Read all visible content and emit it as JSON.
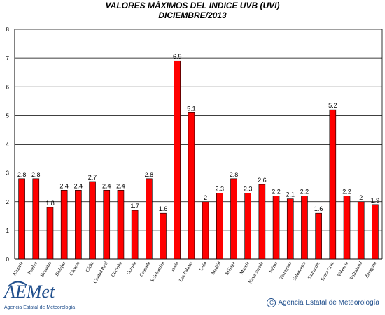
{
  "chart_data": {
    "type": "bar",
    "title": "VALORES MÁXIMOS DEL INDICE UVB (UVI)",
    "subtitle": "DICIEMBRE/2013",
    "categories": [
      "Almería",
      "Huelva",
      "Bruselas",
      "Badajoz",
      "Cáceres",
      "Cádiz",
      "Ciudad Real",
      "Córdoba",
      "Coruña",
      "Granada",
      "S.Sebastián",
      "Izaña",
      "Las Palmas",
      "León",
      "Madrid",
      "Málaga",
      "Murcia",
      "Navacerrada",
      "Palma",
      "Tarragona",
      "Salamanca",
      "Santander",
      "Santa Cruz",
      "Valencia",
      "Valladolid",
      "Zaragoza"
    ],
    "values": [
      2.8,
      2.8,
      1.8,
      2.4,
      2.4,
      2.7,
      2.4,
      2.4,
      1.7,
      2.8,
      1.6,
      6.9,
      5.1,
      2.0,
      2.3,
      2.8,
      2.3,
      2.6,
      2.2,
      2.1,
      2.2,
      1.6,
      5.2,
      2.2,
      2.0,
      1.9
    ],
    "data_labels": [
      "2.8",
      "2.8",
      "1.8",
      "2.4",
      "2.4",
      "2.7",
      "2.4",
      "2.4",
      "1.7",
      "2.8",
      "1.6",
      "6.9",
      "5.1",
      "2",
      "2.3",
      "2.8",
      "2.3",
      "2.6",
      "2.2",
      "2.1",
      "2.2",
      "1.6",
      "5.2",
      "2.2",
      "2",
      "1.9"
    ],
    "ylim": [
      0,
      8
    ],
    "yticks": [
      "0",
      "1",
      "2",
      "3",
      "4",
      "5",
      "6",
      "7",
      "8"
    ],
    "bar_color": "#ff0000",
    "grid": true
  },
  "logo": {
    "brand": "AEMet",
    "tagline": "Agencia Estatal de Meteorología"
  },
  "footer": {
    "copyright_symbol": "C",
    "text": "Agencia Estatal de Meteorología"
  }
}
